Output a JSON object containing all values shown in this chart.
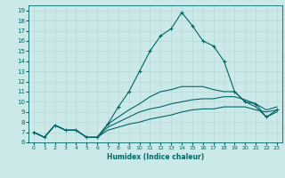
{
  "xlabel": "Humidex (Indice chaleur)",
  "ylabel": "",
  "bg_color": "#cce9e9",
  "grid_color": "#b8d8d8",
  "line_color": "#006666",
  "xlim": [
    -0.5,
    23.5
  ],
  "ylim": [
    6,
    19.5
  ],
  "xticks": [
    0,
    1,
    2,
    3,
    4,
    5,
    6,
    7,
    8,
    9,
    10,
    11,
    12,
    13,
    14,
    15,
    16,
    17,
    18,
    19,
    20,
    21,
    22,
    23
  ],
  "yticks": [
    6,
    7,
    8,
    9,
    10,
    11,
    12,
    13,
    14,
    15,
    16,
    17,
    18,
    19
  ],
  "lines": [
    {
      "x": [
        0,
        1,
        2,
        3,
        4,
        5,
        6,
        7,
        8,
        9,
        10,
        11,
        12,
        13,
        14,
        15,
        16,
        17,
        18,
        19,
        20,
        21,
        22,
        23
      ],
      "y": [
        7.0,
        6.5,
        7.7,
        7.2,
        7.2,
        6.5,
        6.5,
        7.2,
        7.5,
        7.8,
        8.0,
        8.3,
        8.5,
        8.7,
        9.0,
        9.2,
        9.3,
        9.3,
        9.5,
        9.5,
        9.5,
        9.2,
        9.0,
        9.2
      ],
      "marker": false
    },
    {
      "x": [
        0,
        1,
        2,
        3,
        4,
        5,
        6,
        7,
        8,
        9,
        10,
        11,
        12,
        13,
        14,
        15,
        16,
        17,
        18,
        19,
        20,
        21,
        22,
        23
      ],
      "y": [
        7.0,
        6.5,
        7.7,
        7.2,
        7.2,
        6.5,
        6.5,
        7.5,
        8.0,
        8.5,
        9.0,
        9.3,
        9.5,
        9.8,
        10.0,
        10.2,
        10.3,
        10.3,
        10.5,
        10.5,
        10.2,
        9.8,
        9.2,
        9.5
      ],
      "marker": false
    },
    {
      "x": [
        0,
        1,
        2,
        3,
        4,
        5,
        6,
        7,
        8,
        9,
        10,
        11,
        12,
        13,
        14,
        15,
        16,
        17,
        18,
        19,
        20,
        21,
        22,
        23
      ],
      "y": [
        7.0,
        6.5,
        7.7,
        7.2,
        7.2,
        6.5,
        6.5,
        7.8,
        8.5,
        9.2,
        9.8,
        10.5,
        11.0,
        11.2,
        11.5,
        11.5,
        11.5,
        11.2,
        11.0,
        11.0,
        10.0,
        9.5,
        8.5,
        9.0
      ],
      "marker": false
    },
    {
      "x": [
        0,
        1,
        2,
        3,
        4,
        5,
        6,
        7,
        8,
        9,
        10,
        11,
        12,
        13,
        14,
        15,
        16,
        17,
        18,
        19,
        20,
        21,
        22,
        23
      ],
      "y": [
        7.0,
        6.5,
        7.7,
        7.2,
        7.2,
        6.5,
        6.5,
        7.8,
        9.5,
        11.0,
        13.0,
        15.0,
        16.5,
        17.2,
        18.8,
        17.5,
        16.0,
        15.5,
        14.0,
        11.0,
        10.0,
        9.8,
        8.5,
        9.2
      ],
      "marker": true
    }
  ]
}
